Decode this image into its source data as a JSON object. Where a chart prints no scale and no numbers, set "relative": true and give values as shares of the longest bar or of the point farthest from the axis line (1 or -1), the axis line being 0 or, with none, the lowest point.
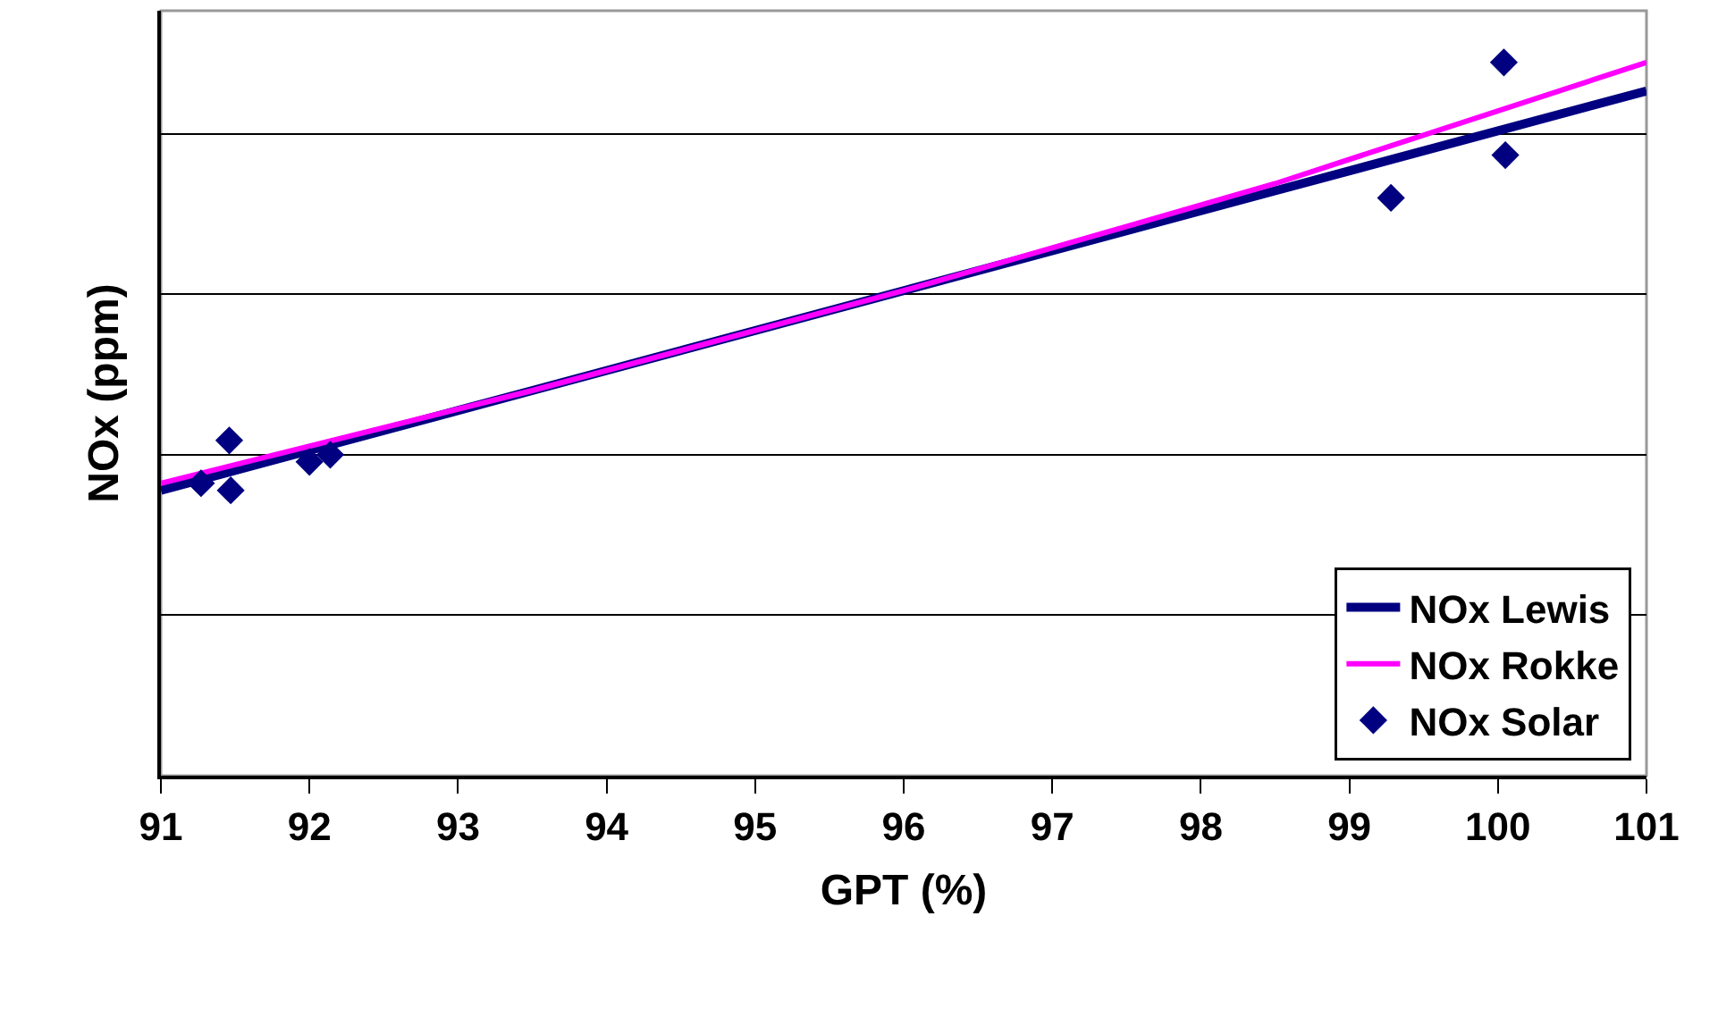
{
  "chart_data": {
    "type": "scatter",
    "xlabel": "GPT (%)",
    "ylabel": "NOx (ppm)",
    "relative": true,
    "xlim": [
      91,
      101
    ],
    "xticks": [
      91,
      92,
      93,
      94,
      95,
      96,
      97,
      98,
      99,
      100,
      101
    ],
    "grid": "y",
    "legend": "bottom right",
    "series": [
      {
        "name": "NOx Lewis",
        "type": "line",
        "color": "#000080",
        "marker": "none",
        "line_style": "solid",
        "x": [
          91,
          93.5,
          96,
          98.5,
          101
        ],
        "values": [
          0.4,
          0.54,
          0.68,
          0.82,
          0.96
        ]
      },
      {
        "name": "NOx Rokke",
        "type": "line",
        "color": "#ff00ff",
        "marker": "none",
        "line_style": "solid",
        "x": [
          91,
          93.5,
          96,
          98.5,
          101
        ],
        "values": [
          0.41,
          0.54,
          0.68,
          0.83,
          1.0
        ]
      },
      {
        "name": "NOx Solar",
        "color": "#000080",
        "marker": "diamond",
        "x": [
          91.27,
          91.46,
          91.47,
          92.0,
          92.14,
          99.28,
          100.04,
          100.05
        ],
        "values": [
          0.41,
          0.47,
          0.4,
          0.44,
          0.45,
          0.81,
          1.0,
          0.87
        ]
      }
    ]
  }
}
